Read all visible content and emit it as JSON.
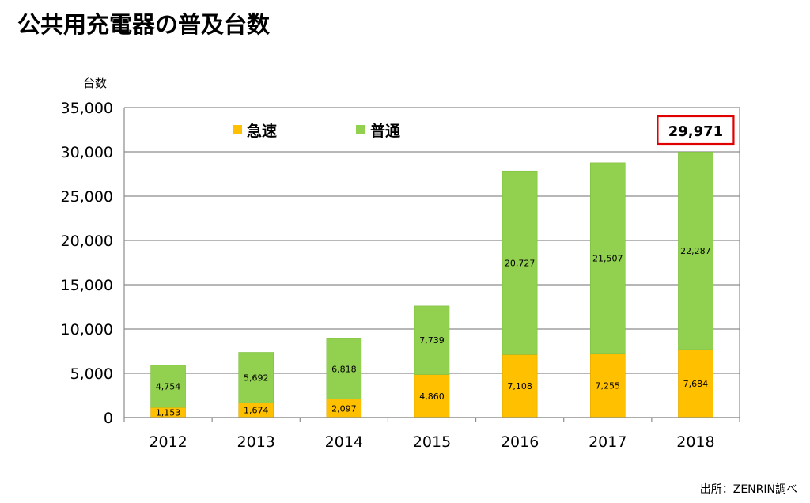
{
  "title": "公共用充電器の普及台数",
  "source": "出所：ZENRIN調べ",
  "chart_data": {
    "type": "bar",
    "stacked": true,
    "categories": [
      "2012",
      "2013",
      "2014",
      "2015",
      "2016",
      "2017",
      "2018"
    ],
    "series": [
      {
        "name": "急速",
        "color": "#ffc000",
        "values": [
          1153,
          1674,
          2097,
          4860,
          7108,
          7255,
          7684
        ],
        "labels": [
          "1,153",
          "1,674",
          "2,097",
          "4,860",
          "7,108",
          "7,255",
          "7,684"
        ]
      },
      {
        "name": "普通",
        "color": "#92d050",
        "values": [
          4754,
          5692,
          6818,
          7739,
          20727,
          21507,
          22287
        ],
        "labels": [
          "4,754",
          "5,692",
          "6,818",
          "7,739",
          "20,727",
          "21,507",
          "22,287"
        ]
      }
    ],
    "ylabel": "台数",
    "ylim": [
      0,
      35000
    ],
    "yticks": [
      0,
      5000,
      10000,
      15000,
      20000,
      25000,
      30000,
      35000
    ],
    "ytick_labels": [
      "0",
      "5,000",
      "10,000",
      "15,000",
      "20,000",
      "25,000",
      "30,000",
      "35,000"
    ],
    "grid": true,
    "legend_position": "top-left",
    "annotation": {
      "text": "29,971",
      "category": "2018",
      "border_color": "#e00000"
    }
  }
}
